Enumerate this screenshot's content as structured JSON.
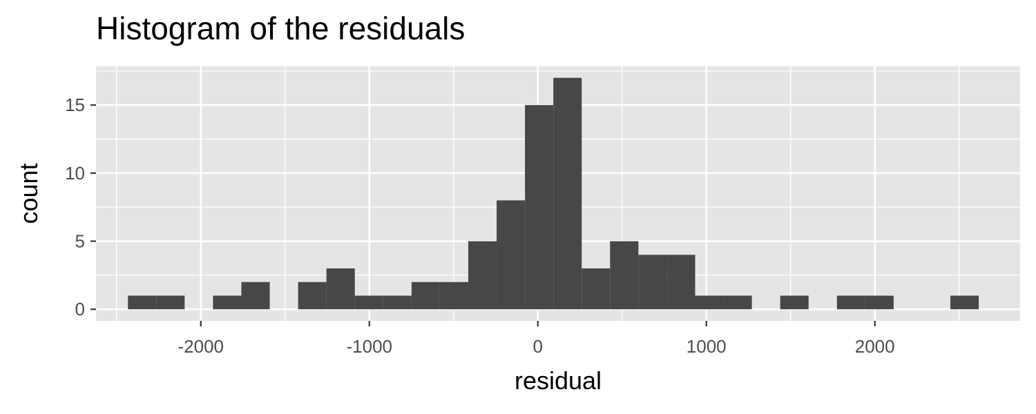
{
  "chart_data": {
    "type": "bar",
    "title": "Histogram of the residuals",
    "xlabel": "residual",
    "ylabel": "count",
    "bin_width": 168.3,
    "bins": [
      {
        "x0": -2432.5,
        "x1": -2264.2,
        "count": 1
      },
      {
        "x0": -2264.2,
        "x1": -2095.9,
        "count": 1
      },
      {
        "x0": -2095.9,
        "x1": -1927.6,
        "count": 0
      },
      {
        "x0": -1927.6,
        "x1": -1759.3,
        "count": 1
      },
      {
        "x0": -1759.3,
        "x1": -1591.0,
        "count": 2
      },
      {
        "x0": -1591.0,
        "x1": -1422.7,
        "count": 0
      },
      {
        "x0": -1422.7,
        "x1": -1254.4,
        "count": 2
      },
      {
        "x0": -1254.4,
        "x1": -1086.1,
        "count": 3
      },
      {
        "x0": -1086.1,
        "x1": -917.8,
        "count": 1
      },
      {
        "x0": -917.8,
        "x1": -749.5,
        "count": 1
      },
      {
        "x0": -749.5,
        "x1": -581.2,
        "count": 2
      },
      {
        "x0": -581.2,
        "x1": -412.9,
        "count": 2
      },
      {
        "x0": -412.9,
        "x1": -244.6,
        "count": 5
      },
      {
        "x0": -244.6,
        "x1": -76.3,
        "count": 8
      },
      {
        "x0": -76.3,
        "x1": 92.0,
        "count": 15
      },
      {
        "x0": 92.0,
        "x1": 260.3,
        "count": 17
      },
      {
        "x0": 260.3,
        "x1": 428.6,
        "count": 3
      },
      {
        "x0": 428.6,
        "x1": 596.9,
        "count": 5
      },
      {
        "x0": 596.9,
        "x1": 765.2,
        "count": 4
      },
      {
        "x0": 765.2,
        "x1": 933.5,
        "count": 4
      },
      {
        "x0": 933.5,
        "x1": 1101.8,
        "count": 1
      },
      {
        "x0": 1101.8,
        "x1": 1270.1,
        "count": 1
      },
      {
        "x0": 1270.1,
        "x1": 1438.4,
        "count": 0
      },
      {
        "x0": 1438.4,
        "x1": 1606.7,
        "count": 1
      },
      {
        "x0": 1606.7,
        "x1": 1775.0,
        "count": 0
      },
      {
        "x0": 1775.0,
        "x1": 1943.3,
        "count": 1
      },
      {
        "x0": 1943.3,
        "x1": 2111.6,
        "count": 1
      },
      {
        "x0": 2111.6,
        "x1": 2279.9,
        "count": 0
      },
      {
        "x0": 2279.9,
        "x1": 2448.2,
        "count": 0
      },
      {
        "x0": 2448.2,
        "x1": 2616.5,
        "count": 1
      }
    ],
    "xlim": [
      -2622,
      2862
    ],
    "ylim": [
      -0.85,
      17.85
    ],
    "x_ticks": [
      -2000,
      -1000,
      0,
      1000,
      2000
    ],
    "x_tick_labels": [
      "-2000",
      "-1000",
      "0",
      "1000",
      "2000"
    ],
    "x_minor_ticks": [
      -2500,
      -1500,
      -500,
      500,
      1500,
      2500
    ],
    "y_ticks": [
      0,
      5,
      10,
      15
    ],
    "y_tick_labels": [
      "0",
      "5",
      "10",
      "15"
    ],
    "y_minor_ticks": [
      2.5,
      7.5,
      12.5,
      17.5
    ],
    "grid": true,
    "colors": {
      "panel_background": "#e5e5e5",
      "grid": "#ffffff",
      "bar_fill": "#474747",
      "tick_text": "#4d4d4d",
      "tick_mark": "#333333"
    }
  }
}
